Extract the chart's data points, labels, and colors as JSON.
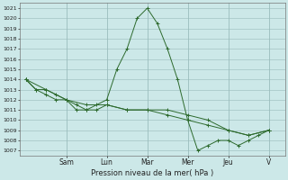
{
  "background_color": "#cce8e8",
  "grid_color": "#99bbbb",
  "line_color": "#2d6a2d",
  "marker_color": "#2d6a2d",
  "xlabel": "Pression niveau de la mer( hPa )",
  "ylim": [
    1006.5,
    1021.5
  ],
  "yticks": [
    1007,
    1008,
    1009,
    1010,
    1011,
    1012,
    1013,
    1014,
    1015,
    1016,
    1017,
    1018,
    1019,
    1020,
    1021
  ],
  "x_day_labels": [
    "Sam",
    "Lun",
    "Mar",
    "Mer",
    "Jeu",
    "V"
  ],
  "x_day_positions": [
    2,
    4,
    6,
    8,
    10,
    12
  ],
  "xlim": [
    -0.3,
    12.8
  ],
  "series": [
    {
      "x": [
        0,
        0.5,
        1,
        1.5,
        2,
        2.5,
        3,
        3.5,
        4,
        4.5,
        5,
        5.5,
        6,
        6.5,
        7,
        7.5,
        8,
        8.5,
        9,
        9.5,
        10,
        10.5,
        11,
        11.5,
        12
      ],
      "y": [
        1014,
        1013,
        1013,
        1012.5,
        1012,
        1011,
        1011,
        1011.5,
        1012,
        1015,
        1017,
        1020,
        1021,
        1019.5,
        1017,
        1014,
        1010,
        1007,
        1007.5,
        1008,
        1008,
        1007.5,
        1008,
        1008.5,
        1009
      ]
    },
    {
      "x": [
        0,
        0.5,
        1,
        1.5,
        2,
        2.5,
        3,
        3.5,
        4,
        5,
        6,
        7,
        8,
        9,
        10,
        11,
        12
      ],
      "y": [
        1014,
        1013,
        1012.5,
        1012,
        1012,
        1011.5,
        1011,
        1011,
        1011.5,
        1011,
        1011,
        1011,
        1010.5,
        1010,
        1009,
        1008.5,
        1009
      ]
    },
    {
      "x": [
        0,
        1,
        2,
        3,
        4,
        5,
        6,
        7,
        8,
        9,
        10,
        11,
        12
      ],
      "y": [
        1014,
        1013,
        1012,
        1011.5,
        1011.5,
        1011,
        1011,
        1010.5,
        1010,
        1009.5,
        1009,
        1008.5,
        1009
      ]
    }
  ]
}
